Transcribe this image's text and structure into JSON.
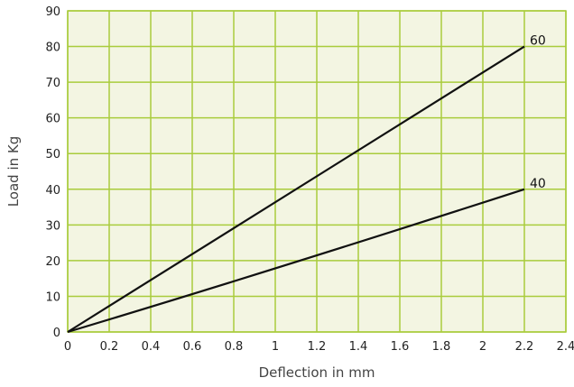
{
  "chart_data": {
    "type": "line",
    "title": "",
    "xlabel": "Deflection in mm",
    "ylabel": "Load in Kg",
    "xlim": [
      0,
      2.4
    ],
    "ylim": [
      0,
      90
    ],
    "x_ticks": [
      "0",
      "0.2",
      "0.4",
      "0.6",
      "0.8",
      "1",
      "1.2",
      "1.4",
      "1.6",
      "1.8",
      "2",
      "2.2",
      "2.4"
    ],
    "y_ticks": [
      "0",
      "10",
      "20",
      "30",
      "40",
      "50",
      "60",
      "70",
      "80",
      "90"
    ],
    "grid": true,
    "legend": "none",
    "series": [
      {
        "name": "60",
        "x": [
          0,
          2.2
        ],
        "y": [
          0,
          80
        ]
      },
      {
        "name": "40",
        "x": [
          0,
          1.0,
          2.2
        ],
        "y": [
          0,
          18,
          40
        ]
      }
    ],
    "colors": {
      "plot_background": "#f3f5e2",
      "grid": "#a9cc3c",
      "line": "#111111"
    }
  }
}
